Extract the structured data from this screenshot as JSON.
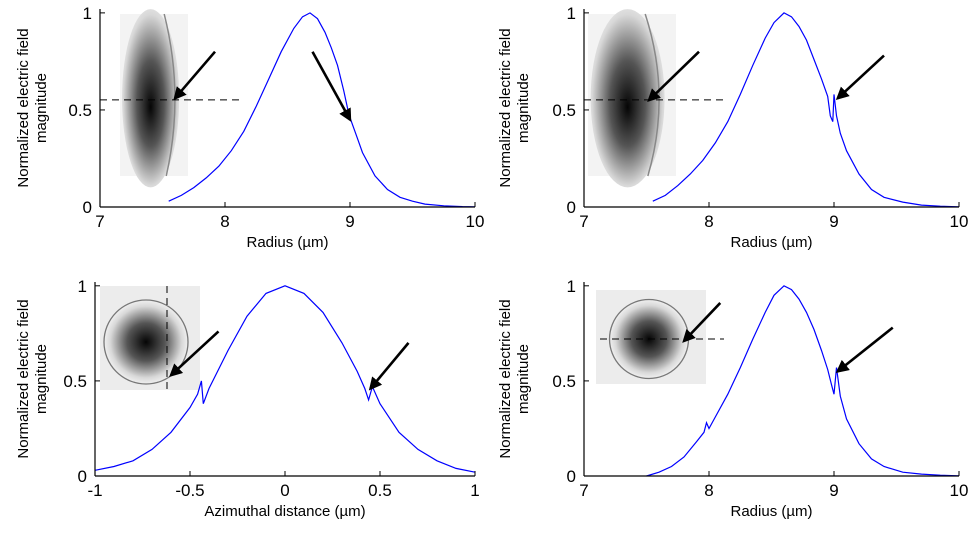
{
  "chart_data": [
    {
      "type": "line",
      "panel": "top-left",
      "xlabel": "Radius (µm)",
      "ylabel": [
        "Normalized electric field",
        "magnitude"
      ],
      "xlim": [
        7,
        10
      ],
      "ylim": [
        0,
        1.02
      ],
      "xticks": [
        "7",
        "8",
        "9",
        "10"
      ],
      "xtick_values": [
        7,
        8,
        9,
        10
      ],
      "yticks": [
        "0",
        "0.5",
        "1"
      ],
      "ytick_values": [
        0,
        0.5,
        1
      ],
      "series_color": "#0000ff",
      "x": [
        7.55,
        7.65,
        7.75,
        7.85,
        7.95,
        8.05,
        8.15,
        8.25,
        8.35,
        8.45,
        8.55,
        8.62,
        8.68,
        8.74,
        8.8,
        8.85,
        8.9,
        8.95,
        8.98,
        9.0,
        9.05,
        9.1,
        9.2,
        9.3,
        9.4,
        9.5,
        9.6,
        9.75,
        9.9,
        10.0
      ],
      "values": [
        0.03,
        0.06,
        0.1,
        0.15,
        0.21,
        0.29,
        0.39,
        0.52,
        0.66,
        0.8,
        0.92,
        0.98,
        1.0,
        0.97,
        0.9,
        0.82,
        0.73,
        0.6,
        0.51,
        0.46,
        0.37,
        0.28,
        0.16,
        0.09,
        0.05,
        0.03,
        0.015,
        0.006,
        0.002,
        0.001
      ],
      "annotations": [
        {
          "type": "arrow",
          "from": [
            8.7,
            0.8
          ],
          "to": [
            9.0,
            0.45
          ]
        },
        {
          "type": "arrow",
          "from": [
            7.92,
            0.8
          ],
          "to": [
            7.6,
            0.56
          ]
        }
      ],
      "inset": {
        "shape": "ring-profile",
        "line": "horizontal"
      }
    },
    {
      "type": "line",
      "panel": "top-right",
      "xlabel": "Radius (µm)",
      "ylabel": [
        "Normalized electric field",
        "magnitude"
      ],
      "xlim": [
        7,
        10
      ],
      "ylim": [
        0,
        1.02
      ],
      "xticks": [
        "7",
        "8",
        "9",
        "10"
      ],
      "xtick_values": [
        7,
        8,
        9,
        10
      ],
      "yticks": [
        "0",
        "0.5",
        "1"
      ],
      "ytick_values": [
        0,
        0.5,
        1
      ],
      "series_color": "#0000ff",
      "x": [
        7.55,
        7.65,
        7.75,
        7.85,
        7.95,
        8.05,
        8.15,
        8.25,
        8.35,
        8.45,
        8.52,
        8.6,
        8.66,
        8.72,
        8.78,
        8.84,
        8.9,
        8.95,
        8.97,
        8.99,
        9.0,
        9.02,
        9.05,
        9.1,
        9.2,
        9.3,
        9.4,
        9.55,
        9.7,
        9.85,
        10.0
      ],
      "values": [
        0.03,
        0.06,
        0.11,
        0.17,
        0.24,
        0.33,
        0.44,
        0.58,
        0.73,
        0.87,
        0.95,
        1.0,
        0.98,
        0.93,
        0.86,
        0.76,
        0.66,
        0.57,
        0.47,
        0.44,
        0.58,
        0.47,
        0.38,
        0.29,
        0.17,
        0.09,
        0.05,
        0.025,
        0.01,
        0.004,
        0.001
      ],
      "annotations": [
        {
          "type": "arrow",
          "from": [
            9.4,
            0.78
          ],
          "to": [
            9.03,
            0.56
          ]
        },
        {
          "type": "arrow",
          "from": [
            7.92,
            0.8
          ],
          "to": [
            7.52,
            0.55
          ]
        }
      ],
      "inset": {
        "shape": "ring-profile",
        "line": "horizontal"
      }
    },
    {
      "type": "line",
      "panel": "bottom-left",
      "xlabel": "Azimuthal distance (µm)",
      "ylabel": [
        "Normalized electric field",
        "magnitude"
      ],
      "xlim": [
        -1,
        1
      ],
      "ylim": [
        0,
        1.02
      ],
      "xticks": [
        "-1",
        "-0.5",
        "0",
        "0.5",
        "1"
      ],
      "xtick_values": [
        -1,
        -0.5,
        0,
        0.5,
        1
      ],
      "yticks": [
        "0",
        "0.5",
        "1"
      ],
      "ytick_values": [
        0,
        0.5,
        1
      ],
      "series_color": "#0000ff",
      "x": [
        -1.0,
        -0.9,
        -0.8,
        -0.7,
        -0.6,
        -0.5,
        -0.46,
        -0.44,
        -0.43,
        -0.4,
        -0.3,
        -0.2,
        -0.1,
        0.0,
        0.1,
        0.2,
        0.3,
        0.38,
        0.42,
        0.44,
        0.46,
        0.5,
        0.6,
        0.7,
        0.8,
        0.9,
        1.0
      ],
      "values": [
        0.03,
        0.05,
        0.08,
        0.14,
        0.23,
        0.36,
        0.43,
        0.5,
        0.38,
        0.46,
        0.66,
        0.84,
        0.96,
        1.0,
        0.96,
        0.86,
        0.7,
        0.55,
        0.46,
        0.4,
        0.47,
        0.38,
        0.23,
        0.14,
        0.08,
        0.04,
        0.02
      ],
      "annotations": [
        {
          "type": "arrow",
          "from": [
            0.65,
            0.7
          ],
          "to": [
            0.45,
            0.46
          ]
        },
        {
          "type": "arrow",
          "from": [
            -0.35,
            0.76
          ],
          "to": [
            -0.6,
            0.53
          ]
        }
      ],
      "inset": {
        "shape": "disk",
        "line": "vertical"
      }
    },
    {
      "type": "line",
      "panel": "bottom-right",
      "xlabel": "Radius (µm)",
      "ylabel": [
        "Normalized electric field",
        "magnitude"
      ],
      "xlim": [
        7,
        10
      ],
      "ylim": [
        0,
        1.02
      ],
      "xticks": [
        "7",
        "8",
        "9",
        "10"
      ],
      "xtick_values": [
        7,
        8,
        9,
        10
      ],
      "yticks": [
        "0",
        "0.5",
        "1"
      ],
      "ytick_values": [
        0,
        0.5,
        1
      ],
      "series_color": "#0000ff",
      "x": [
        7.5,
        7.6,
        7.7,
        7.8,
        7.9,
        7.96,
        7.98,
        8.0,
        8.05,
        8.15,
        8.25,
        8.35,
        8.45,
        8.52,
        8.6,
        8.66,
        8.72,
        8.78,
        8.84,
        8.9,
        8.95,
        8.98,
        9.0,
        9.02,
        9.05,
        9.1,
        9.2,
        9.3,
        9.4,
        9.55,
        9.7,
        9.85,
        10.0
      ],
      "values": [
        0.0,
        0.02,
        0.05,
        0.1,
        0.18,
        0.23,
        0.28,
        0.25,
        0.31,
        0.43,
        0.57,
        0.72,
        0.86,
        0.95,
        1.0,
        0.98,
        0.93,
        0.86,
        0.77,
        0.66,
        0.56,
        0.48,
        0.43,
        0.57,
        0.42,
        0.3,
        0.17,
        0.09,
        0.05,
        0.02,
        0.01,
        0.004,
        0.001
      ],
      "annotations": [
        {
          "type": "arrow",
          "from": [
            9.47,
            0.78
          ],
          "to": [
            9.03,
            0.55
          ]
        },
        {
          "type": "arrow",
          "from": [
            8.09,
            0.91
          ],
          "to": [
            7.8,
            0.71
          ]
        }
      ],
      "inset": {
        "shape": "disk",
        "line": "horizontal"
      }
    }
  ]
}
